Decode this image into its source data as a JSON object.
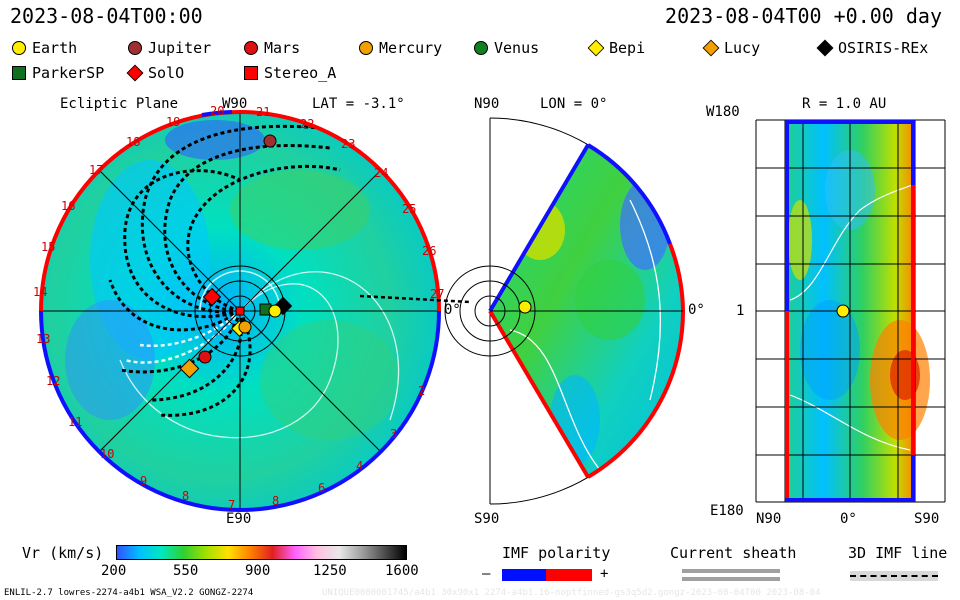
{
  "header": {
    "left_time": "2023-08-04T00:00",
    "right_time": "2023-08-04T00 +0.00 day"
  },
  "legend": [
    {
      "label": "Earth",
      "shape": "circle",
      "color": "#ffee00"
    },
    {
      "label": "Jupiter",
      "shape": "circle",
      "color": "#a03030"
    },
    {
      "label": "Mars",
      "shape": "circle",
      "color": "#e01010"
    },
    {
      "label": "Mercury",
      "shape": "circle",
      "color": "#f0a000"
    },
    {
      "label": "Venus",
      "shape": "circle",
      "color": "#108020"
    },
    {
      "label": "Bepi",
      "shape": "diamond",
      "color": "#ffee00"
    },
    {
      "label": "Lucy",
      "shape": "diamond",
      "color": "#f0a000"
    },
    {
      "label": "OSIRIS-REx",
      "shape": "diamond",
      "color": "#000000"
    },
    {
      "label": "ParkerSP",
      "shape": "square",
      "color": "#107020"
    },
    {
      "label": "SolO",
      "shape": "diamond",
      "color": "#ff0000"
    },
    {
      "label": "Stereo_A",
      "shape": "square",
      "color": "#ff0000"
    }
  ],
  "panels": {
    "ecliptic": {
      "title": "Ecliptic Plane",
      "top_label": "W90",
      "lat": "LAT = -3.1°",
      "right_label": "0°",
      "bottom_label": "E90",
      "sector_numbers": [
        "1",
        "2",
        "3",
        "4",
        "5",
        "6",
        "7",
        "8",
        "9",
        "10",
        "11",
        "12",
        "13",
        "14",
        "15",
        "16",
        "17",
        "18",
        "19",
        "20",
        "21",
        "22",
        "23",
        "24",
        "25",
        "26",
        "27"
      ]
    },
    "meridional": {
      "top_label": "N90",
      "lon": "LON = 0°",
      "right_label": "0°",
      "bottom_label": "S90"
    },
    "synoptic": {
      "top_left": "W180",
      "title": "R = 1.0 AU",
      "left_mid": "1",
      "bottom_left": "E180",
      "x_ticks": [
        "N90",
        "0°",
        "S90"
      ]
    }
  },
  "colorbar": {
    "label": "Vr (km/s)",
    "ticks": [
      "200",
      "550",
      "900",
      "1250",
      "1600"
    ],
    "stops": [
      "#3050ff",
      "#00c0ff",
      "#00e8c0",
      "#30d030",
      "#a0e000",
      "#ffe000",
      "#ff8000",
      "#e02020",
      "#ff60ff",
      "#ffc0e0",
      "#e8e8e8",
      "#a0a0a0",
      "#505050",
      "#000000"
    ]
  },
  "imf": {
    "label": "IMF polarity",
    "minus": "–",
    "plus": "+",
    "neg_color": "#0010ff",
    "pos_color": "#ff0000"
  },
  "sheath": {
    "label": "Current sheath"
  },
  "imf3d": {
    "label": "3D IMF line"
  },
  "footer": {
    "left": "ENLIL-2.7 lowres-2274-a4b1 WSA_V2.2 GONGZ-2274",
    "right": "UNIQUE0080001745/a4b1 30x90x1 2274-a4b1.16-noptfinned-gs3q5d2.gongz-2023-08-04T00    2023-08-04"
  }
}
